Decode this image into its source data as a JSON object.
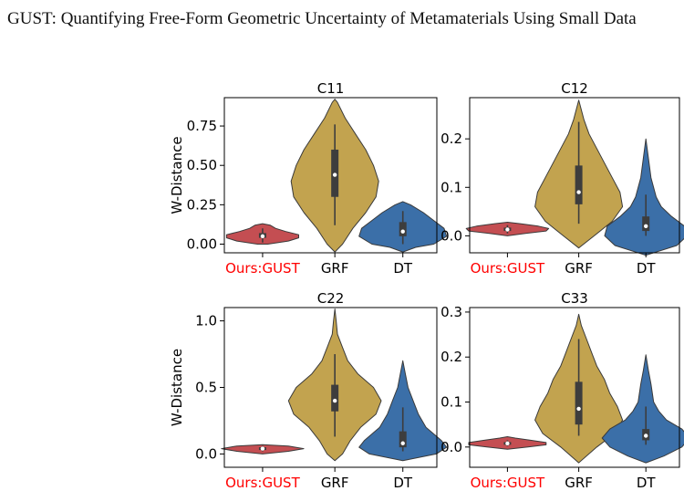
{
  "header": {
    "title": "GUST: Quantifying Free-Form Geometric Uncertainty of Metamaterials Using Small Data"
  },
  "colors": {
    "ours": "#c44e52",
    "grf": "#c2a34f",
    "dt": "#3b6fa8",
    "ours_label": "#ff0000"
  },
  "chart_data": [
    {
      "type": "violin",
      "title": "C11",
      "ylabel": "W-Distance",
      "categories": [
        "Ours:GUST",
        "GRF",
        "DT"
      ],
      "ylim": [
        -0.055,
        0.93
      ],
      "yticks": [
        0.0,
        0.25,
        0.5,
        0.75
      ],
      "ytick_labels": [
        "0.00",
        "0.25",
        "0.50",
        "0.75"
      ],
      "series": [
        {
          "category": "Ours:GUST",
          "color": "#c44e52",
          "min": 0.01,
          "q1": 0.04,
          "median": 0.05,
          "q3": 0.07,
          "max": 0.1,
          "kde_y": [
            0.0,
            0.02,
            0.04,
            0.06,
            0.08,
            0.1,
            0.12,
            0.13
          ],
          "kde_w": [
            0.02,
            0.1,
            0.14,
            0.14,
            0.09,
            0.05,
            0.03,
            0.0
          ]
        },
        {
          "category": "GRF",
          "color": "#c2a34f",
          "min": 0.12,
          "q1": 0.3,
          "median": 0.44,
          "q3": 0.6,
          "max": 0.76,
          "kde_y": [
            -0.05,
            0.0,
            0.1,
            0.2,
            0.3,
            0.4,
            0.5,
            0.6,
            0.7,
            0.8,
            0.9,
            0.92
          ],
          "kde_w": [
            0.0,
            0.03,
            0.07,
            0.12,
            0.16,
            0.17,
            0.15,
            0.12,
            0.08,
            0.04,
            0.01,
            0.0
          ]
        },
        {
          "category": "DT",
          "color": "#3b6fa8",
          "min": 0.0,
          "q1": 0.05,
          "median": 0.08,
          "q3": 0.14,
          "max": 0.21,
          "kde_y": [
            -0.05,
            -0.02,
            0.0,
            0.05,
            0.1,
            0.15,
            0.2,
            0.25,
            0.27
          ],
          "kde_w": [
            0.0,
            0.05,
            0.12,
            0.17,
            0.16,
            0.12,
            0.08,
            0.03,
            0.0
          ]
        }
      ]
    },
    {
      "type": "violin",
      "title": "C12",
      "ylabel": "",
      "categories": [
        "Ours:GUST",
        "GRF",
        "DT"
      ],
      "ylim": [
        -0.035,
        0.285
      ],
      "yticks": [
        0.0,
        0.1,
        0.2
      ],
      "ytick_labels": [
        "0.0",
        "0.1",
        "0.2"
      ],
      "series": [
        {
          "category": "Ours:GUST",
          "color": "#c44e52",
          "min": 0.005,
          "q1": 0.01,
          "median": 0.013,
          "q3": 0.017,
          "max": 0.022,
          "kde_y": [
            0.0,
            0.005,
            0.01,
            0.015,
            0.02,
            0.025,
            0.028
          ],
          "kde_w": [
            0.0,
            0.07,
            0.15,
            0.16,
            0.12,
            0.05,
            0.0
          ]
        },
        {
          "category": "GRF",
          "color": "#c2a34f",
          "min": 0.025,
          "q1": 0.065,
          "median": 0.09,
          "q3": 0.145,
          "max": 0.235,
          "kde_y": [
            -0.025,
            0.0,
            0.03,
            0.06,
            0.09,
            0.12,
            0.15,
            0.18,
            0.21,
            0.24,
            0.28
          ],
          "kde_w": [
            0.0,
            0.06,
            0.13,
            0.17,
            0.16,
            0.13,
            0.1,
            0.07,
            0.04,
            0.02,
            0.0
          ]
        },
        {
          "category": "DT",
          "color": "#3b6fa8",
          "min": 0.0,
          "q1": 0.01,
          "median": 0.02,
          "q3": 0.04,
          "max": 0.085,
          "kde_y": [
            -0.04,
            -0.02,
            0.0,
            0.02,
            0.04,
            0.06,
            0.08,
            0.12,
            0.16,
            0.2
          ],
          "kde_w": [
            0.0,
            0.12,
            0.16,
            0.15,
            0.1,
            0.06,
            0.04,
            0.02,
            0.01,
            0.0
          ]
        }
      ]
    },
    {
      "type": "violin",
      "title": "C22",
      "ylabel": "W-Distance",
      "categories": [
        "Ours:GUST",
        "GRF",
        "DT"
      ],
      "ylim": [
        -0.1,
        1.1
      ],
      "yticks": [
        0.0,
        0.5,
        1.0
      ],
      "ytick_labels": [
        "0.0",
        "0.5",
        "1.0"
      ],
      "series": [
        {
          "category": "Ours:GUST",
          "color": "#c44e52",
          "min": 0.02,
          "q1": 0.03,
          "median": 0.04,
          "q3": 0.05,
          "max": 0.06,
          "kde_y": [
            0.0,
            0.02,
            0.04,
            0.06,
            0.07
          ],
          "kde_w": [
            0.0,
            0.1,
            0.16,
            0.1,
            0.0
          ]
        },
        {
          "category": "GRF",
          "color": "#c2a34f",
          "min": 0.13,
          "q1": 0.32,
          "median": 0.4,
          "q3": 0.52,
          "max": 0.75,
          "kde_y": [
            -0.05,
            0.0,
            0.1,
            0.2,
            0.3,
            0.4,
            0.5,
            0.6,
            0.7,
            0.8,
            0.9,
            1.0,
            1.09
          ],
          "kde_w": [
            0.0,
            0.03,
            0.06,
            0.1,
            0.16,
            0.18,
            0.15,
            0.09,
            0.05,
            0.03,
            0.01,
            0.005,
            0.0
          ]
        },
        {
          "category": "DT",
          "color": "#3b6fa8",
          "min": 0.02,
          "q1": 0.05,
          "median": 0.08,
          "q3": 0.17,
          "max": 0.35,
          "kde_y": [
            -0.05,
            0.0,
            0.05,
            0.1,
            0.2,
            0.3,
            0.4,
            0.5,
            0.6,
            0.7
          ],
          "kde_w": [
            0.0,
            0.13,
            0.17,
            0.15,
            0.09,
            0.06,
            0.04,
            0.02,
            0.01,
            0.0
          ]
        }
      ]
    },
    {
      "type": "violin",
      "title": "C33",
      "ylabel": "",
      "categories": [
        "Ours:GUST",
        "GRF",
        "DT"
      ],
      "ylim": [
        -0.045,
        0.31
      ],
      "yticks": [
        0.0,
        0.1,
        0.2,
        0.3
      ],
      "ytick_labels": [
        "0.0",
        "0.1",
        "0.2",
        "0.3"
      ],
      "series": [
        {
          "category": "Ours:GUST",
          "color": "#c44e52",
          "min": 0.002,
          "q1": 0.005,
          "median": 0.008,
          "q3": 0.011,
          "max": 0.015,
          "kde_y": [
            -0.005,
            0.0,
            0.005,
            0.01,
            0.015,
            0.02,
            0.023
          ],
          "kde_w": [
            0.0,
            0.08,
            0.15,
            0.15,
            0.09,
            0.03,
            0.0
          ]
        },
        {
          "category": "GRF",
          "color": "#c2a34f",
          "min": 0.025,
          "q1": 0.05,
          "median": 0.085,
          "q3": 0.145,
          "max": 0.24,
          "kde_y": [
            -0.035,
            0.0,
            0.03,
            0.06,
            0.09,
            0.12,
            0.15,
            0.18,
            0.21,
            0.24,
            0.27,
            0.295
          ],
          "kde_w": [
            0.0,
            0.07,
            0.14,
            0.17,
            0.15,
            0.12,
            0.1,
            0.07,
            0.05,
            0.03,
            0.01,
            0.0
          ]
        },
        {
          "category": "DT",
          "color": "#3b6fa8",
          "min": 0.005,
          "q1": 0.015,
          "median": 0.025,
          "q3": 0.04,
          "max": 0.09,
          "kde_y": [
            -0.035,
            -0.02,
            0.0,
            0.02,
            0.04,
            0.06,
            0.08,
            0.1,
            0.14,
            0.17,
            0.205
          ],
          "kde_w": [
            0.0,
            0.07,
            0.14,
            0.17,
            0.14,
            0.08,
            0.05,
            0.03,
            0.02,
            0.01,
            0.0
          ]
        }
      ]
    }
  ]
}
